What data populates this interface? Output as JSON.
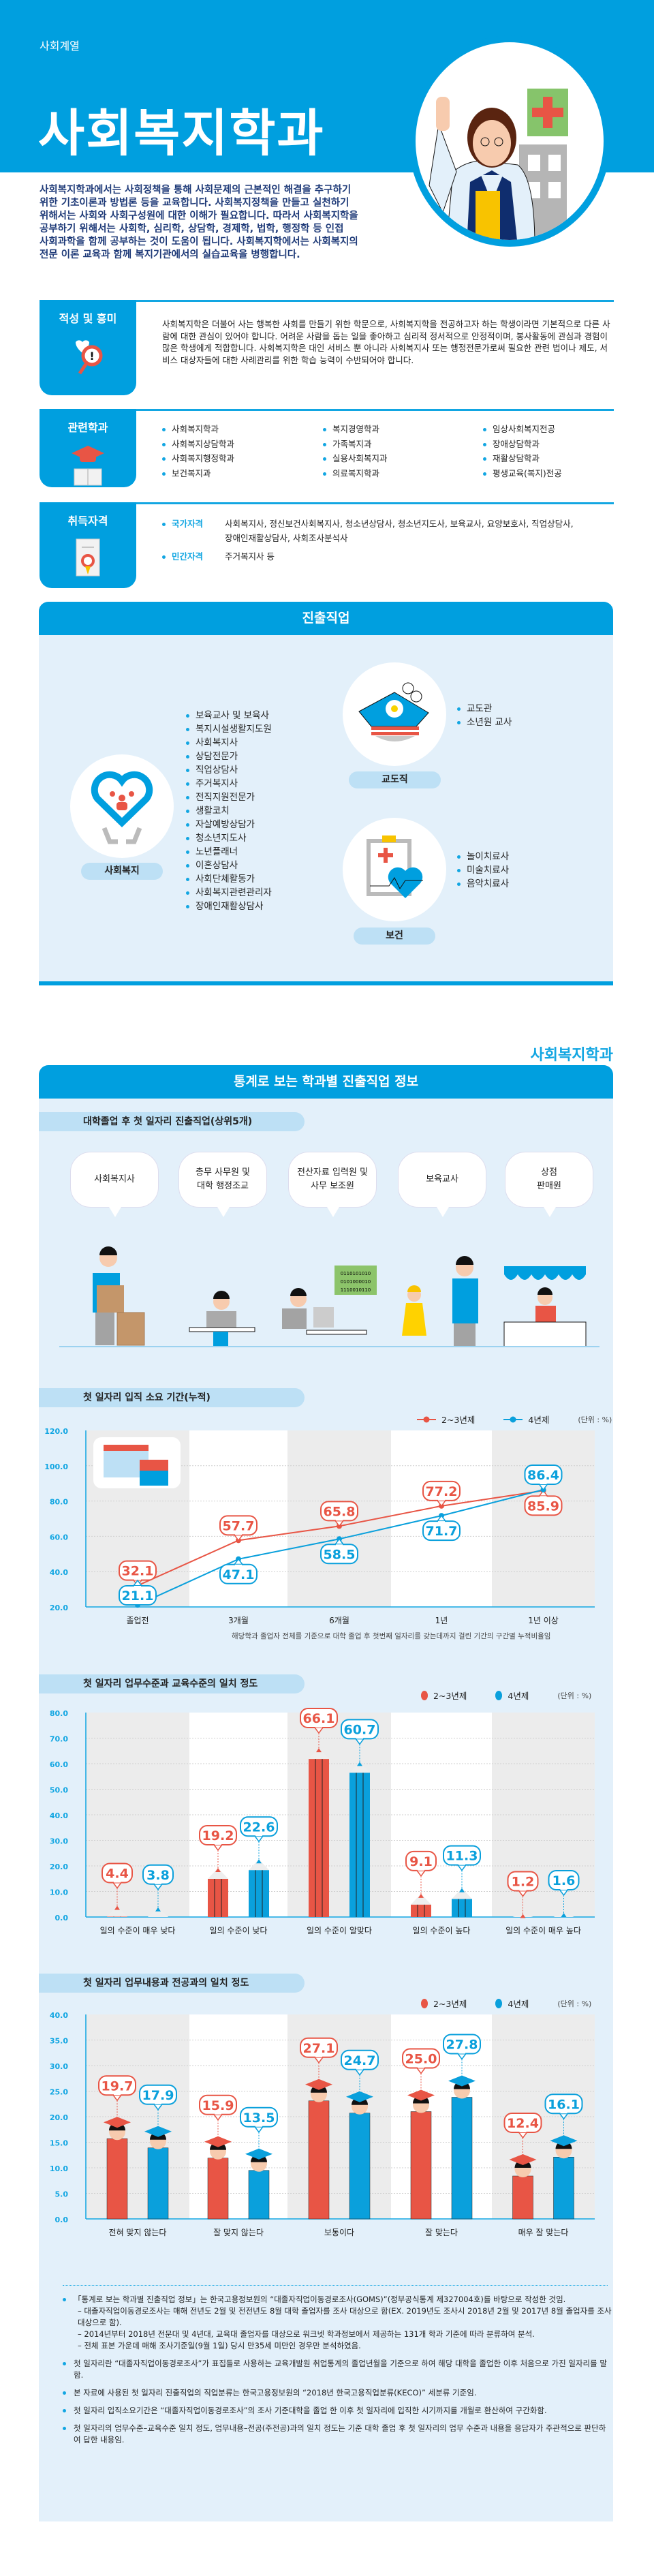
{
  "header": {
    "category": "사회계열",
    "title": "사회복지학과"
  },
  "intro": {
    "lines": [
      "사회복지학과에서는 사회정책을 통해 사회문제의 근본적인 해결을 추구하기",
      "위한 기초이론과 방법론 등을 교육합니다. 사회복지정책을 만들고 실천하기",
      "위해서는 사회와 사회구성원에 대한 이해가 필요합니다. 따라서 사회복지학을",
      "공부하기 위해서는 사회학, 심리학, 상담학, 경제학, 법학, 행정학 등 인접",
      "사회과학을 함께 공부하는 것이 도움이 됩니다. 사회복지학에서는 사회복지의",
      "전문 이론 교육과 함께 복지기관에서의 실습교육을 병행합니다."
    ]
  },
  "info": {
    "aptitude": {
      "label": "적성 및 흥미",
      "icon": "heart-magnifier-icon",
      "text": "사회복지학은 더불어 사는 행복한 사회를 만들기 위한 학문으로, 사회복지학을 전공하고자 하는 학생이라면 기본적으로 다른 사람에 대한 관심이 있어야 합니다. 어려운 사람을 돕는 일을 좋아하고 심리적 정서적으로 안정적이며, 봉사활동에 관심과 경험이 많은 학생에게 적합합니다. 사회복지학은 대인 서비스 뿐 아니라 사회복지사 또는 행정전문가로써 필요한 관련 법이나 제도, 서비스 대상자들에 대한 사례관리를 위한 학습 능력이 수반되어야 합니다."
    },
    "related": {
      "label": "관련학과",
      "icon": "graduation-cap-book-icon",
      "columns": [
        [
          "사회복지학과",
          "사회복지상담학과",
          "사회복지행정학과",
          "보건복지과"
        ],
        [
          "복지경영학과",
          "가족복지과",
          "실용사회복지과",
          "의료복지학과"
        ],
        [
          "임상사회복지전공",
          "장애상담학과",
          "재활상담학과",
          "평생교육(복지)전공"
        ]
      ]
    },
    "license": {
      "label": "취득자격",
      "icon": "certificate-icon",
      "national_label": "국가자격",
      "national_lines": [
        "사회복지사, 정신보건사회복지사, 청소년상담사, 청소년지도사, 보육교사, 요양보호사, 직업상담사,",
        "장애인재활상담사, 사회조사분석사"
      ],
      "private_label": "민간자격",
      "private_text": "주거복지사 등"
    }
  },
  "careers": {
    "title": "진출직업",
    "groups": [
      {
        "name": "사회복지",
        "icon": "heart-hands-icon",
        "jobs": [
          "보육교사 및 보육사",
          "복지시설생활지도원",
          "사회복지사",
          "상담전문가",
          "직업상담사",
          "주거복지사",
          "전직지원전문가",
          "생활코치",
          "자살예방상담가",
          "청소년지도사",
          "노년플래너",
          "이혼상담사",
          "사회단체활동가",
          "사회복지관련관리자",
          "장애인재활상담사"
        ]
      },
      {
        "name": "교도직",
        "icon": "police-hat-icon",
        "jobs": [
          "교도관",
          "소년원 교사"
        ]
      },
      {
        "name": "보건",
        "icon": "clipboard-heart-icon",
        "jobs": [
          "놀이치료사",
          "미술치료사",
          "음악치료사"
        ]
      }
    ]
  },
  "stats": {
    "dept_title": "사회복지학과",
    "title": "통계로 보는 학과별 진출직업 정보",
    "top5": {
      "title": "대학졸업 후 첫 일자리 진출직업(상위5개)",
      "jobs": [
        "사회복지사",
        "총무 사무원 및\n대학 행정조교",
        "전산자료 입력원 및\n사무 보조원",
        "보육교사",
        "상점\n판매원"
      ],
      "binary_text": [
        "0110101010",
        "0101000010",
        "1110010110"
      ]
    }
  },
  "legend": {
    "series": [
      "2~3년제",
      "4년제"
    ],
    "unit": "(단위 : %)"
  },
  "colors": {
    "brand": "#009fdf",
    "light_bg": "#e3f0fa",
    "pill": "#bde0f5",
    "series_2_3": "#e85545",
    "series_4": "#0aa0dc",
    "intro_text": "#1e3a78"
  },
  "chart_data": [
    {
      "type": "line",
      "title": "첫 일자리 입직 소요 기간(누적)",
      "categories": [
        "졸업전",
        "3개월",
        "6개월",
        "1년",
        "1년 이상"
      ],
      "series": [
        {
          "name": "2~3년제",
          "values": [
            32.1,
            57.7,
            65.8,
            77.2,
            85.9
          ]
        },
        {
          "name": "4년제",
          "values": [
            21.1,
            47.1,
            58.5,
            71.7,
            86.4
          ]
        }
      ],
      "ylim": [
        20,
        120
      ],
      "ytick_labels": [
        "20.0",
        "40.0",
        "60.0",
        "80.0",
        "100.0",
        "120.0"
      ],
      "grid": true,
      "legend": "top-right",
      "unit": "(단위 : %)",
      "note": "해당학과 졸업자 전체를 기준으로 대학 졸업 후 첫번째 일자리를 갖는데까지 걸린 기간의 구간별 누적비율임"
    },
    {
      "type": "bar",
      "title": "첫 일자리 업무수준과 교육수준의 일치 정도",
      "categories": [
        "일의 수준이 매우 낮다",
        "일의 수준이 낮다",
        "일의 수준이 알맞다",
        "일의 수준이 높다",
        "일의 수준이 매우 높다"
      ],
      "series": [
        {
          "name": "2~3년제",
          "values": [
            4.4,
            19.2,
            66.1,
            9.1,
            1.2
          ]
        },
        {
          "name": "4년제",
          "values": [
            3.8,
            22.6,
            60.7,
            11.3,
            1.6
          ]
        }
      ],
      "ylim": [
        0,
        80
      ],
      "ytick_labels": [
        "0.0",
        "10.0",
        "20.0",
        "30.0",
        "40.0",
        "50.0",
        "60.0",
        "70.0",
        "80.0"
      ],
      "grid": true,
      "legend": "top-right",
      "unit": "(단위 : %)"
    },
    {
      "type": "bar",
      "title": "첫 일자리 업무내용과 전공과의 일치 정도",
      "categories": [
        "전혀 맞지 않는다",
        "잘 맞지 않는다",
        "보통이다",
        "잘 맞는다",
        "매우 잘 맞는다"
      ],
      "series": [
        {
          "name": "2~3년제",
          "values": [
            19.7,
            15.9,
            27.1,
            25.0,
            12.4
          ]
        },
        {
          "name": "4년제",
          "values": [
            17.9,
            13.5,
            24.7,
            27.8,
            16.1
          ]
        }
      ],
      "ylim": [
        0,
        40
      ],
      "ytick_labels": [
        "0.0",
        "5.0",
        "10.0",
        "15.0",
        "20.0",
        "25.0",
        "30.0",
        "35.0",
        "40.0"
      ],
      "grid": true,
      "legend": "top-right",
      "unit": "(단위 : %)"
    }
  ],
  "notes": [
    {
      "text": "「통계로 보는 학과별 진출직업 정보」는 한국고용정보원의 “대졸자직업이동경로조사(GOMS)”(정부공식통계 제327004호)를 바탕으로 작성한 것임.",
      "subs": [
        "– 대졸자직업이동경로조사는 매해 전년도 2월 및 전전년도 8월 대학 졸업자를 조사 대상으로 함(EX. 2019년도 조사시 2018년 2월 및 2017년 8월 졸업자를 조사대상으로 함).",
        "– 2014년부터 2018년 전문대 및 4년대, 교육대 졸업자를 대상으로 워크넷 학과정보에서 제공하는 131개 학과 기준에 따라 분류하여 분석.",
        "– 전체 표본 가운데 매해 조사기준일(9월 1일) 당시 만35세 미만인 경우만 분석하였음."
      ]
    },
    {
      "text": "첫 일자리란 “대졸자직업이동경로조사”가 표집틀로 사용하는 교육개발원 취업통계의 졸업년월을 기준으로 하여 해당 대학을 졸업한 이후 처음으로 가진 일자리를 말함.",
      "subs": []
    },
    {
      "text": "본 자료에 사용된 첫 일자리 진출직업의 직업분류는 한국고용정보원의 “2018년 한국고용직업분류(KECO)” 세분류 기준임.",
      "subs": []
    },
    {
      "text": "첫 일자리 입직소요기간은 “대졸자직업이동경로조사”의 조사 기준대학을 졸업 한 이후 첫 일자리에 입직한 시기까지를 개월로 환산하여 구간화함.",
      "subs": []
    },
    {
      "text": "첫 일자리의 업무수준–교육수준 일치 정도, 업무내용–전공(주전공)과의 일치 정도는 기준 대학 졸업 후 첫 일자리의 업무 수준과 내용을 응답자가 주관적으로 판단하여 답한 내용임.",
      "subs": []
    }
  ]
}
